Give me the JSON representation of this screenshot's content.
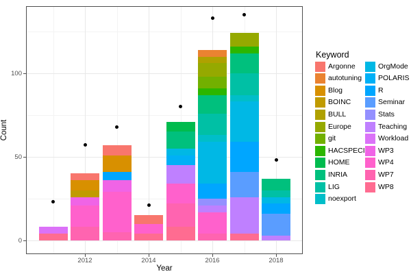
{
  "chart_data": {
    "type": "bar",
    "stacked": true,
    "overlay": "scatter",
    "xlabel": "Year",
    "ylabel": "Count",
    "legend_title": "Keyword",
    "legend_position": "right",
    "x_major_ticks": [
      2012,
      2014,
      2016,
      2018
    ],
    "x_minor_gridlines": [
      2011,
      2013,
      2015,
      2017
    ],
    "y_major_ticks": [
      0,
      50,
      100
    ],
    "y_minor_gridlines": [
      25,
      75,
      125
    ],
    "xlim": [
      2010.2,
      2018.8
    ],
    "ylim": [
      -8,
      140
    ],
    "grid": true,
    "colors": {
      "panel_border": "#4d4d4d",
      "grid_major": "#e8e8e8",
      "grid_minor": "#f3f3f3",
      "tick": "#4d4d4d",
      "point": "#000000"
    },
    "keywords": [
      {
        "name": "Argonne",
        "color": "#F8766D"
      },
      {
        "name": "autotuning",
        "color": "#EA8331"
      },
      {
        "name": "Blog",
        "color": "#D89000"
      },
      {
        "name": "BOINC",
        "color": "#C09B00"
      },
      {
        "name": "BULL",
        "color": "#AFA100"
      },
      {
        "name": "Europe",
        "color": "#95A900"
      },
      {
        "name": "git",
        "color": "#72B000"
      },
      {
        "name": "HACSPECIS",
        "color": "#2BB600"
      },
      {
        "name": "HOME",
        "color": "#00BB4E"
      },
      {
        "name": "INRIA",
        "color": "#00C07D"
      },
      {
        "name": "LIG",
        "color": "#00C0A5"
      },
      {
        "name": "noexport",
        "color": "#00BEC9"
      },
      {
        "name": "OrgMode",
        "color": "#00B8E5"
      },
      {
        "name": "POLARIS",
        "color": "#00B0F6"
      },
      {
        "name": "R",
        "color": "#00A6FF"
      },
      {
        "name": "Seminar",
        "color": "#5A9DFF"
      },
      {
        "name": "Stats",
        "color": "#9490FF"
      },
      {
        "name": "Teaching",
        "color": "#BF80FF"
      },
      {
        "name": "Workload",
        "color": "#DB72F8"
      },
      {
        "name": "WP3",
        "color": "#F064E6"
      },
      {
        "name": "WP4",
        "color": "#FF61CC"
      },
      {
        "name": "WP7",
        "color": "#FF64B0"
      },
      {
        "name": "WP8",
        "color": "#FF6C91"
      }
    ],
    "bars": [
      {
        "year": 2011,
        "total": 8,
        "segments_top_to_bottom": [
          {
            "keyword": "Workload",
            "value": 4
          },
          {
            "keyword": "WP8",
            "value": 4
          }
        ]
      },
      {
        "year": 2012,
        "total": 40,
        "segments_top_to_bottom": [
          {
            "keyword": "Argonne",
            "value": 4
          },
          {
            "keyword": "Blog",
            "value": 6
          },
          {
            "keyword": "BOINC",
            "value": 4
          },
          {
            "keyword": "WP3",
            "value": 5
          },
          {
            "keyword": "WP4",
            "value": 13
          },
          {
            "keyword": "WP7",
            "value": 8
          }
        ]
      },
      {
        "year": 2013,
        "total": 57,
        "segments_top_to_bottom": [
          {
            "keyword": "Argonne",
            "value": 6
          },
          {
            "keyword": "Blog",
            "value": 10
          },
          {
            "keyword": "R",
            "value": 5
          },
          {
            "keyword": "WP3",
            "value": 7
          },
          {
            "keyword": "WP4",
            "value": 24
          },
          {
            "keyword": "WP7",
            "value": 5
          }
        ]
      },
      {
        "year": 2014,
        "total": 15,
        "segments_top_to_bottom": [
          {
            "keyword": "Argonne",
            "value": 5
          },
          {
            "keyword": "WP4",
            "value": 6
          },
          {
            "keyword": "WP8",
            "value": 4
          }
        ]
      },
      {
        "year": 2015,
        "total": 71,
        "segments_top_to_bottom": [
          {
            "keyword": "HOME",
            "value": 6
          },
          {
            "keyword": "INRIA",
            "value": 10
          },
          {
            "keyword": "OrgMode",
            "value": 4
          },
          {
            "keyword": "POLARIS",
            "value": 6
          },
          {
            "keyword": "Teaching",
            "value": 11
          },
          {
            "keyword": "WP4",
            "value": 12
          },
          {
            "keyword": "WP7",
            "value": 14
          },
          {
            "keyword": "WP8",
            "value": 8
          }
        ]
      },
      {
        "year": 2016,
        "total": 114,
        "segments_top_to_bottom": [
          {
            "keyword": "autotuning",
            "value": 4
          },
          {
            "keyword": "BULL",
            "value": 4
          },
          {
            "keyword": "Europe",
            "value": 8
          },
          {
            "keyword": "git",
            "value": 7
          },
          {
            "keyword": "HACSPECIS",
            "value": 4
          },
          {
            "keyword": "INRIA",
            "value": 11
          },
          {
            "keyword": "LIG",
            "value": 13
          },
          {
            "keyword": "noexport",
            "value": 4
          },
          {
            "keyword": "OrgMode",
            "value": 25
          },
          {
            "keyword": "R",
            "value": 9
          },
          {
            "keyword": "Stats",
            "value": 4
          },
          {
            "keyword": "Teaching",
            "value": 4
          },
          {
            "keyword": "WP4",
            "value": 13
          },
          {
            "keyword": "WP7",
            "value": 4
          }
        ]
      },
      {
        "year": 2017,
        "total": 124,
        "segments_top_to_bottom": [
          {
            "keyword": "Europe",
            "value": 8
          },
          {
            "keyword": "HACSPECIS",
            "value": 4
          },
          {
            "keyword": "INRIA",
            "value": 12
          },
          {
            "keyword": "LIG",
            "value": 13
          },
          {
            "keyword": "noexport",
            "value": 4
          },
          {
            "keyword": "OrgMode",
            "value": 24
          },
          {
            "keyword": "R",
            "value": 18
          },
          {
            "keyword": "Seminar",
            "value": 15
          },
          {
            "keyword": "Teaching",
            "value": 22
          },
          {
            "keyword": "WP8",
            "value": 4
          }
        ]
      },
      {
        "year": 2018,
        "total": 37,
        "segments_top_to_bottom": [
          {
            "keyword": "INRIA",
            "value": 7
          },
          {
            "keyword": "LIG",
            "value": 4
          },
          {
            "keyword": "OrgMode",
            "value": 4
          },
          {
            "keyword": "R",
            "value": 6
          },
          {
            "keyword": "Seminar",
            "value": 13
          },
          {
            "keyword": "Teaching",
            "value": 3
          }
        ]
      }
    ],
    "points": [
      {
        "year": 2011,
        "value": 23
      },
      {
        "year": 2012,
        "value": 57
      },
      {
        "year": 2013,
        "value": 68
      },
      {
        "year": 2014,
        "value": 21
      },
      {
        "year": 2015,
        "value": 80
      },
      {
        "year": 2016,
        "value": 133
      },
      {
        "year": 2017,
        "value": 135
      },
      {
        "year": 2018,
        "value": 48
      }
    ]
  }
}
